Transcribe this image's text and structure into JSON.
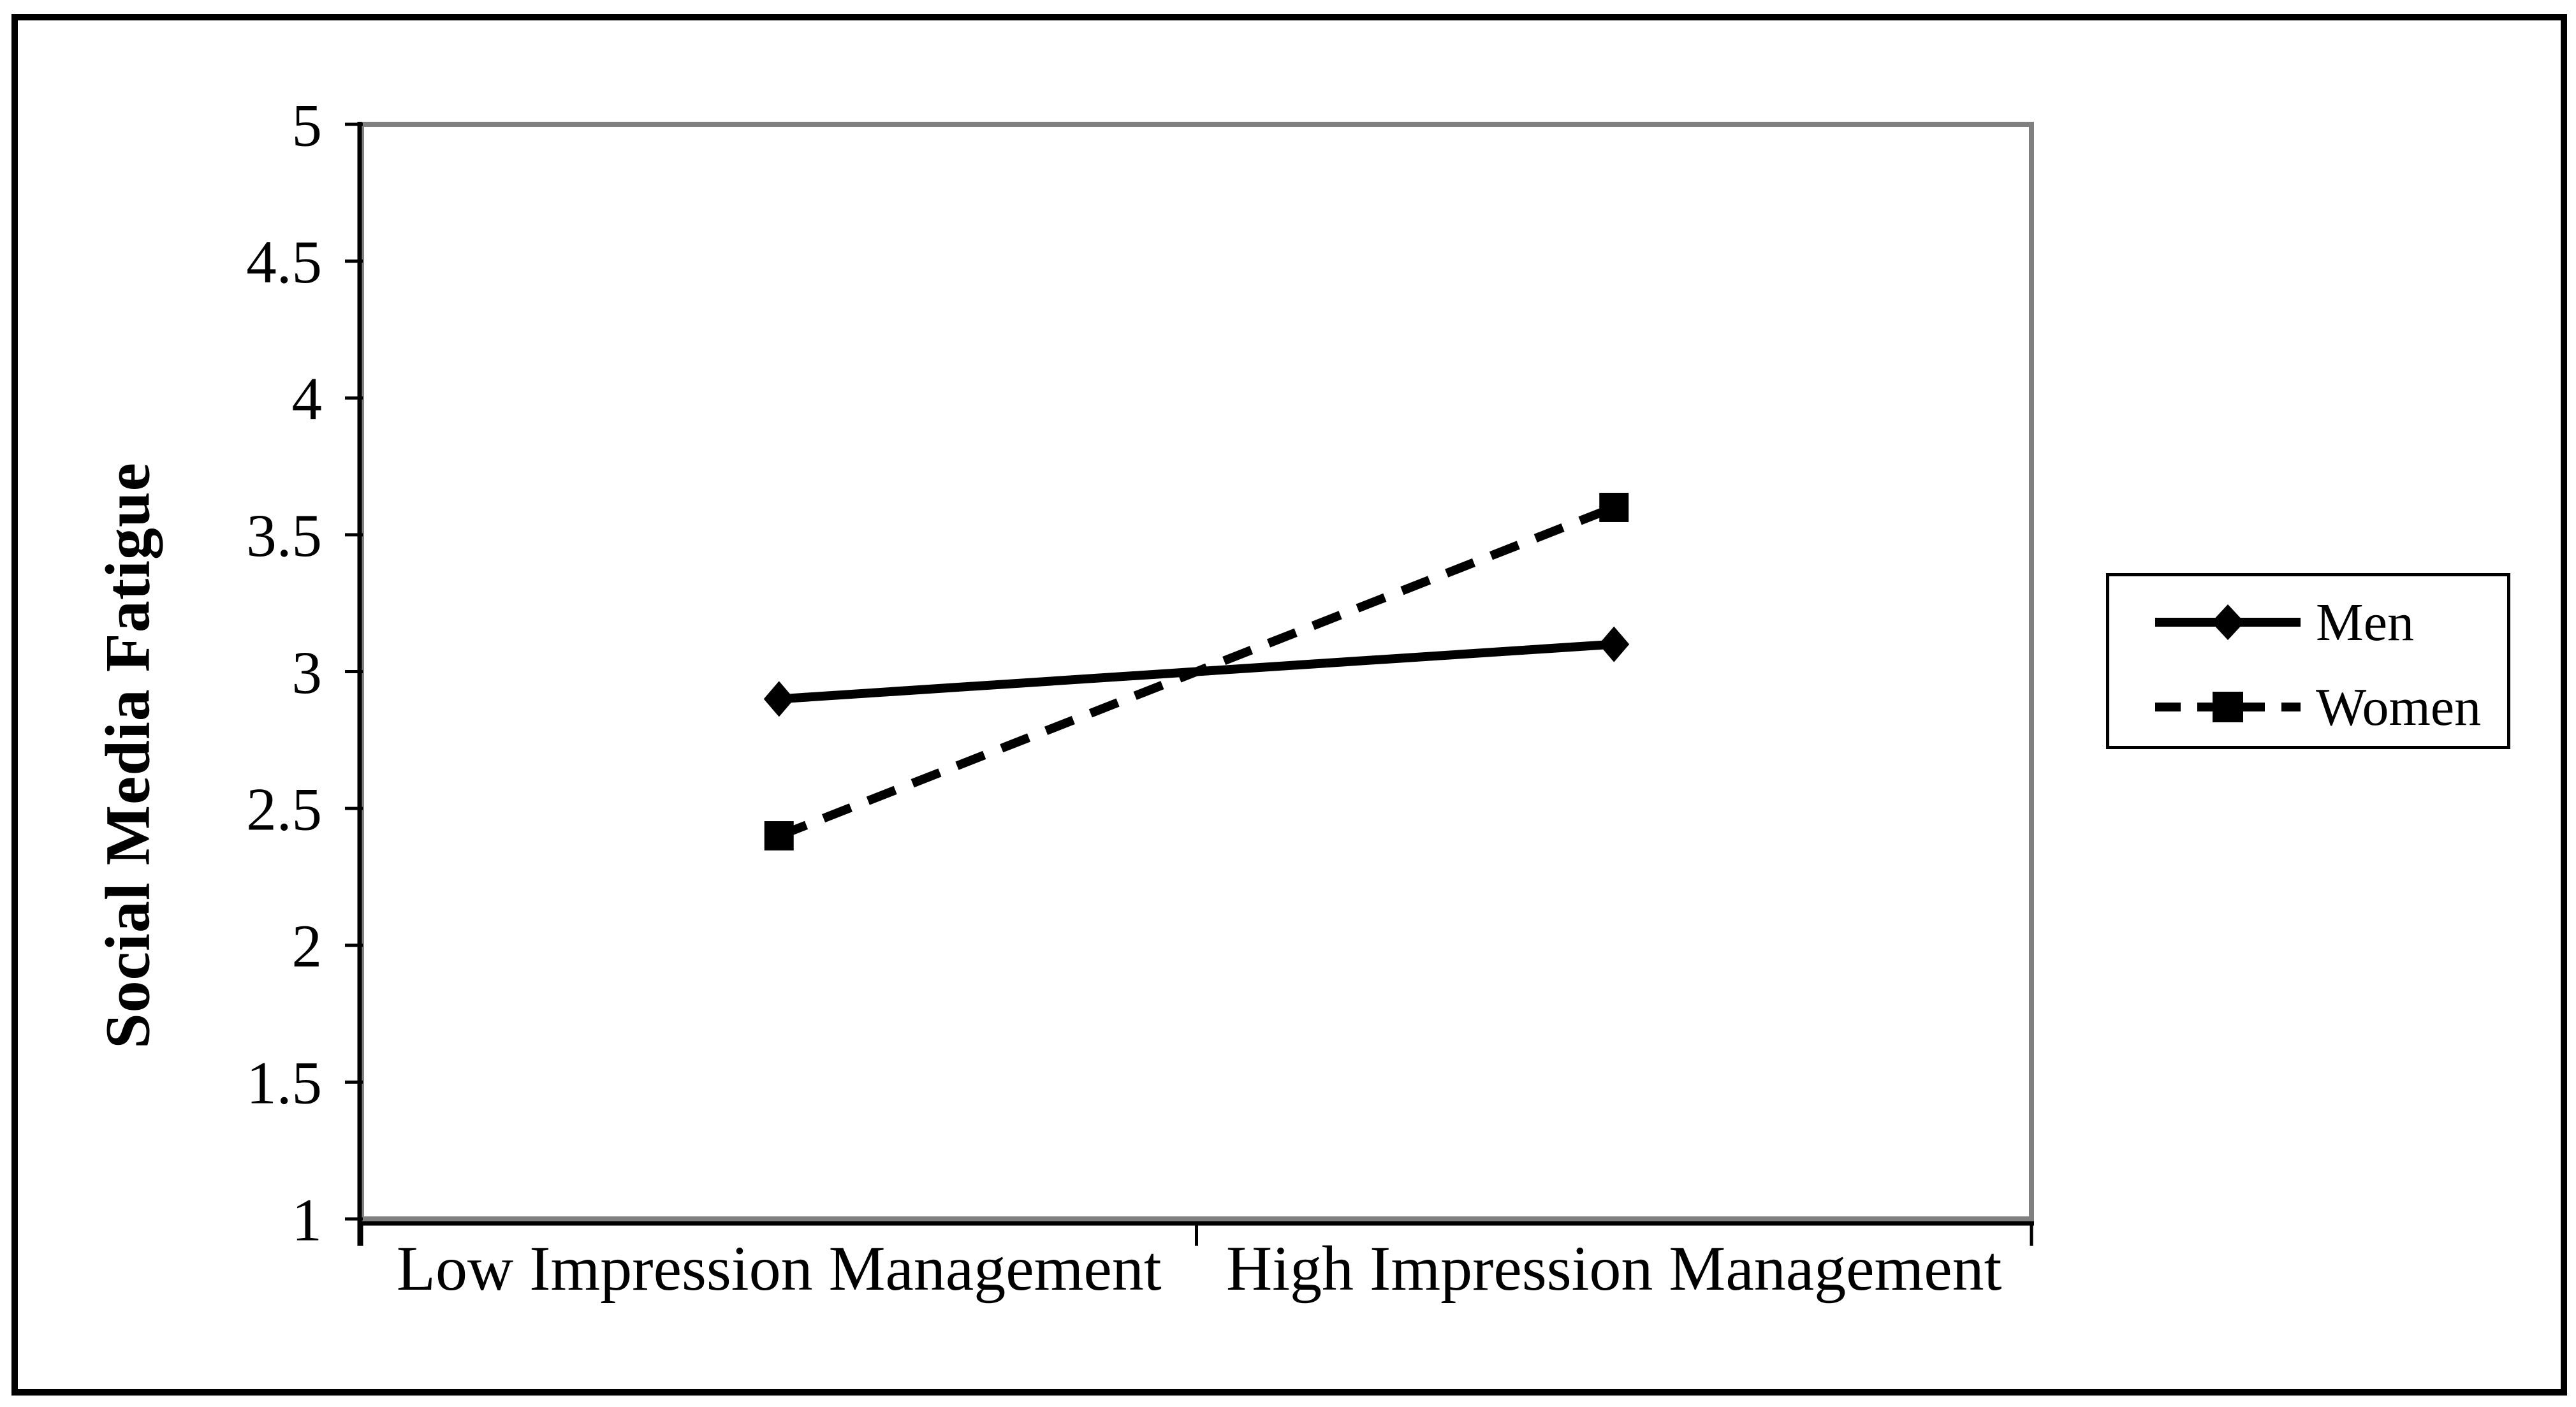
{
  "figure": {
    "background": "#ffffff",
    "frame_color": "#000000"
  },
  "chart_data": {
    "type": "line",
    "title": "",
    "categories": [
      "Low Impression Management",
      "High Impression Management"
    ],
    "series": [
      {
        "name": "Men",
        "values": [
          2.9,
          3.1
        ],
        "line_style": "solid",
        "marker": "diamond",
        "color": "#000000"
      },
      {
        "name": "Women",
        "values": [
          2.4,
          3.6
        ],
        "line_style": "dashed",
        "marker": "square",
        "color": "#000000"
      }
    ],
    "xlabel": "",
    "ylabel": "Social Media Fatigue",
    "ylim": [
      1,
      5
    ],
    "yticks": [
      5,
      4.5,
      4,
      3.5,
      3,
      2.5,
      2,
      1.5,
      1
    ],
    "grid": false,
    "legend_position": "right-middle",
    "axis_color": "#000000",
    "plot_border_color": "#808080",
    "tick_color": "#000000"
  }
}
